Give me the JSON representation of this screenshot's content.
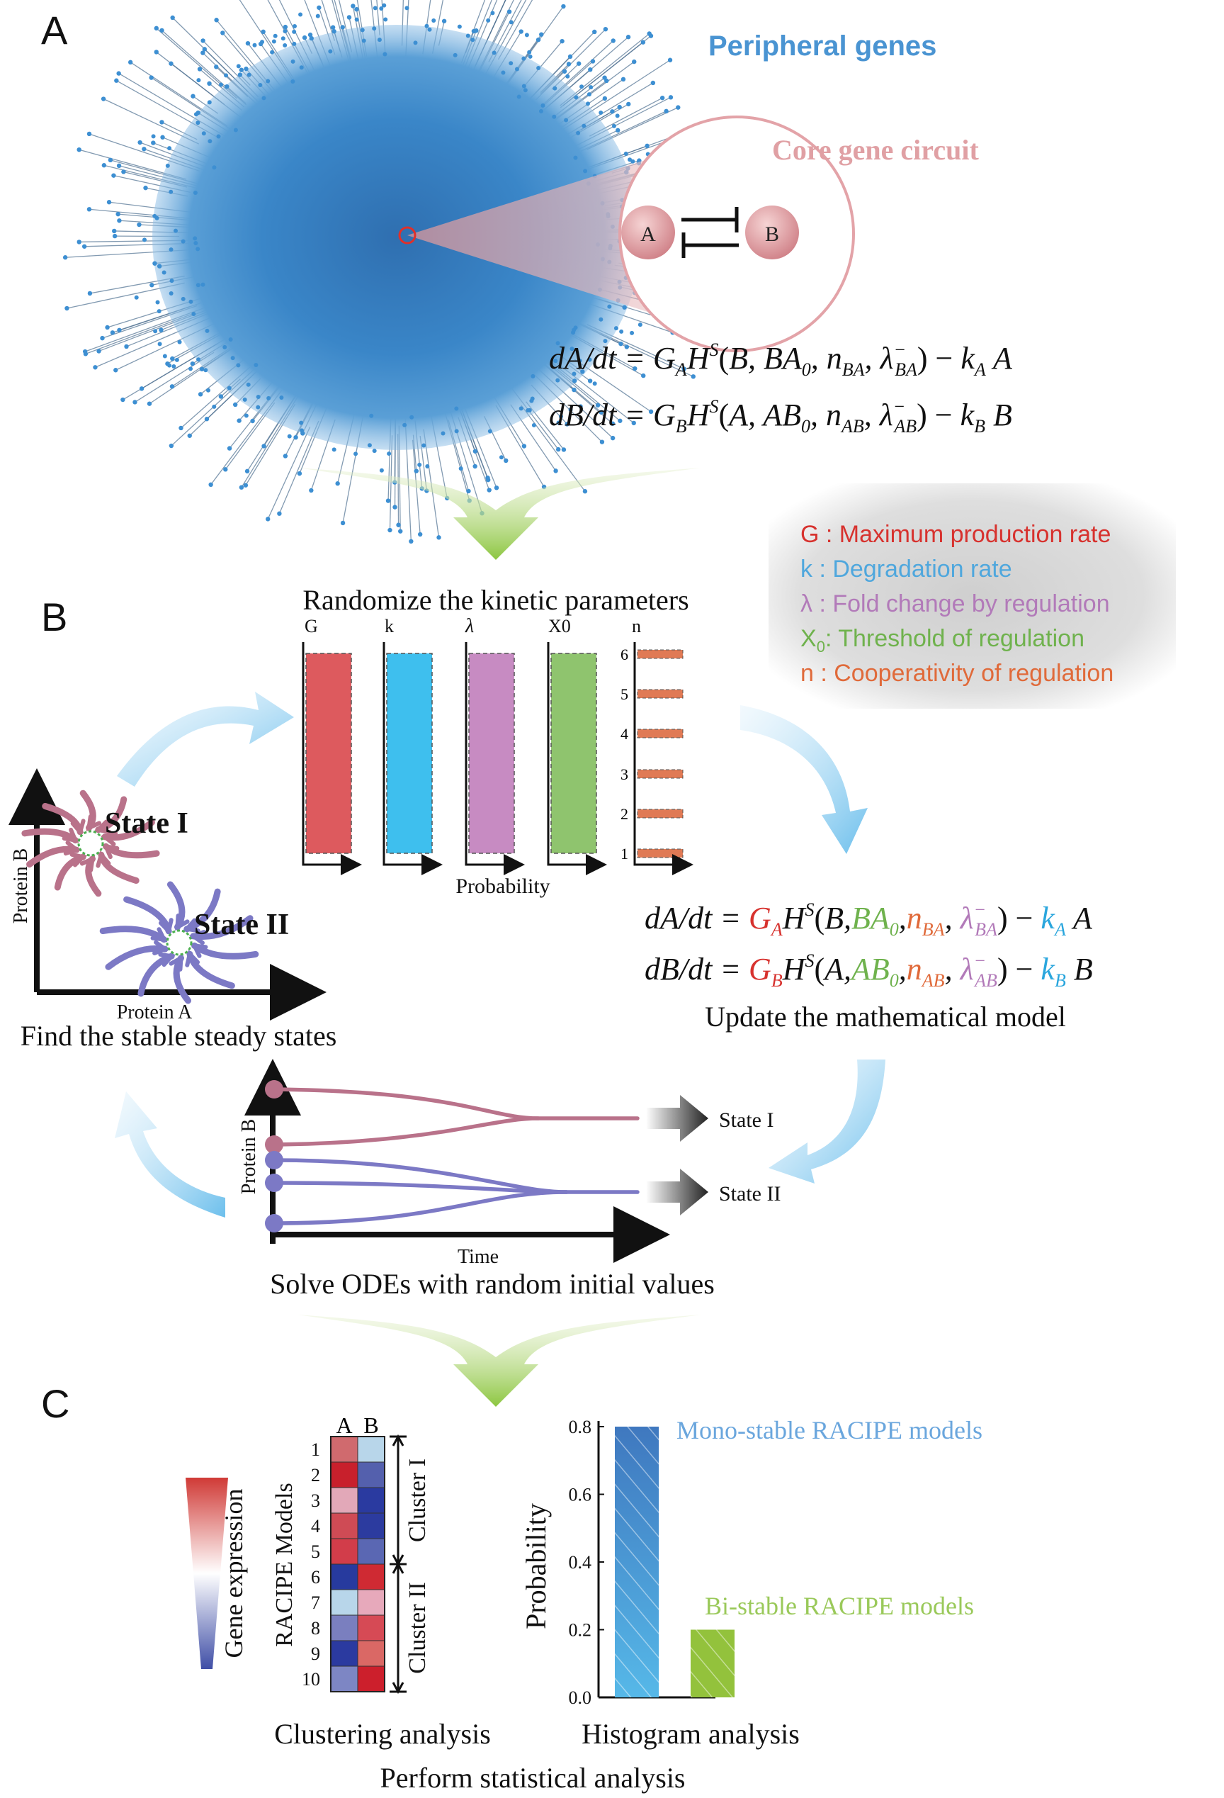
{
  "panels": {
    "a": "A",
    "b": "B",
    "c": "C"
  },
  "panel_a": {
    "peripheral_label": "Peripheral genes",
    "core_label": "Core gene circuit",
    "node_a": "A",
    "node_b": "B"
  },
  "equations_plain": {
    "line1": "dA/dt = G_A H^S(B, BA_0, n_BA, λ⁻_BA) − k_A A",
    "line2": "dB/dt = G_B H^S(A, AB_0, n_AB, λ⁻_AB) − k_B B"
  },
  "panel_b": {
    "randomize_title": "Randomize the kinetic parameters",
    "param_labels": [
      "G",
      "k",
      "λ",
      "X0",
      "n"
    ],
    "n_ticks": [
      "1",
      "2",
      "3",
      "4",
      "5",
      "6"
    ],
    "probability_label": "Probability",
    "legend": [
      {
        "symbol": "G",
        "text": ": Maximum production rate",
        "color": "#d7322e"
      },
      {
        "symbol": "k",
        "text": ": Degradation rate",
        "color": "#4fa7dd"
      },
      {
        "symbol": "λ",
        "text": ": Fold change by regulation",
        "color": "#b27ab9"
      },
      {
        "symbol": "X0",
        "text": ": Threshold of regulation",
        "color": "#6fb24d"
      },
      {
        "symbol": "n",
        "text": ": Cooperativity of regulation",
        "color": "#e06a3a"
      }
    ],
    "phase": {
      "y_axis": "Protein B",
      "x_axis": "Protein A",
      "state1": "State I",
      "state2": "State II",
      "caption": "Find the stable steady states"
    },
    "update_caption": "Update the mathematical model",
    "ode": {
      "y_axis": "Protein B",
      "x_axis": "Time",
      "state1": "State I",
      "state2": "State II",
      "caption": "Solve ODEs with random initial values"
    }
  },
  "panel_c": {
    "heatmap": {
      "columns": [
        "A",
        "B"
      ],
      "row_axis": "RACIPE Models",
      "rows": [
        "1",
        "2",
        "3",
        "4",
        "5",
        "6",
        "7",
        "8",
        "9",
        "10"
      ],
      "colors_a": [
        "#d06a6e",
        "#c8202c",
        "#e2a8b8",
        "#cf4b55",
        "#d23d4a",
        "#273a9e",
        "#b8d6ea",
        "#7a7fbf",
        "#2b3aa0",
        "#7d86c4"
      ],
      "colors_b": [
        "#b8d6ea",
        "#5460ad",
        "#2a3aa0",
        "#2c3b9f",
        "#5a67b3",
        "#cf2a33",
        "#e7a9bb",
        "#d64a55",
        "#da6865",
        "#cc1f2c"
      ],
      "cluster1": "Cluster I",
      "cluster2": "Cluster II",
      "gradient_label": "Gene expression",
      "caption": "Clustering analysis"
    },
    "histogram_caption": "Histogram analysis",
    "bottom_caption": "Perform statistical analysis"
  },
  "chart_data": {
    "type": "bar",
    "categories": [
      "Mono-stable RACIPE models",
      "Bi-stable RACIPE models"
    ],
    "values": [
      0.8,
      0.2
    ],
    "ylabel": "Probability",
    "ylim": [
      0,
      0.8
    ],
    "yticks": [
      "0.0",
      "0.2",
      "0.4",
      "0.6",
      "0.8"
    ],
    "colors": [
      "#4a8ccc",
      "#93c23c"
    ]
  }
}
